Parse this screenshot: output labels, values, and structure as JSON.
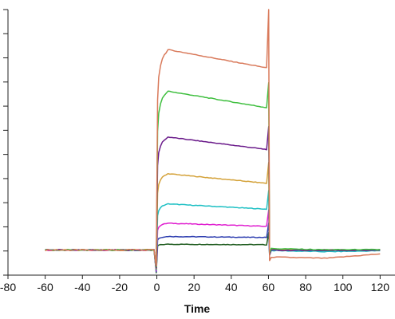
{
  "chart_data": {
    "type": "line",
    "title": "",
    "xlabel": "Time",
    "ylabel": "",
    "xlim": [
      -80,
      128
    ],
    "x_ticks": [
      -80,
      -60,
      -40,
      -20,
      0,
      20,
      40,
      60,
      80,
      100,
      120
    ],
    "ylim": [
      -10,
      100
    ],
    "y_ticks": [
      -10,
      0,
      10,
      20,
      30,
      40,
      50,
      60,
      70,
      80,
      90,
      100
    ],
    "grid": false,
    "legend": "none",
    "series": [
      {
        "color": "#1f5c1f",
        "assoc_peak": 2.8,
        "assoc_end": 2.6,
        "dissoc": [
          0.4,
          0.4,
          0.4
        ]
      },
      {
        "color": "#2f3fb0",
        "assoc_peak": 6.0,
        "assoc_end": 5.6,
        "dissoc": [
          0.3,
          0.3,
          0.3
        ]
      },
      {
        "color": "#e020d0",
        "assoc_peak": 11.5,
        "assoc_end": 10.2,
        "dissoc": [
          0.5,
          0.5,
          0.5
        ]
      },
      {
        "color": "#1fc0c4",
        "assoc_peak": 19.5,
        "assoc_end": 17.3,
        "dissoc": [
          0.2,
          -0.3,
          0.1
        ]
      },
      {
        "color": "#d4a23a",
        "assoc_peak": 32.0,
        "assoc_end": 28.0,
        "dissoc": [
          0.6,
          0.3,
          0.4
        ]
      },
      {
        "color": "#6a1a8a",
        "assoc_peak": 47.2,
        "assoc_end": 42.0,
        "dissoc": [
          0.3,
          0.2,
          0.3
        ]
      },
      {
        "color": "#3fbf3f",
        "assoc_peak": 66.2,
        "assoc_end": 59.3,
        "dissoc": [
          1.0,
          0.5,
          0.6
        ]
      },
      {
        "color": "#d97a5b",
        "assoc_peak": 83.4,
        "assoc_end": 75.8,
        "dissoc": [
          -2.5,
          -3.0,
          -1.2
        ]
      }
    ]
  }
}
